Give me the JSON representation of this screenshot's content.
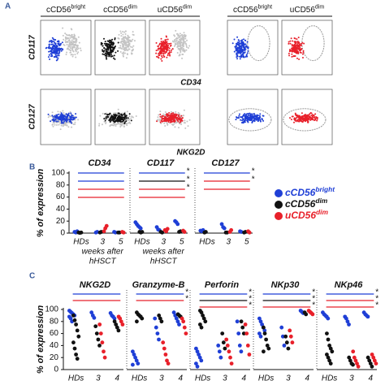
{
  "panel_a": {
    "label": "A",
    "headers": [
      [
        "cCD56",
        "bright"
      ],
      [
        "cCD56",
        "dim"
      ],
      [
        "uCD56",
        "dim"
      ],
      [
        "cCD56",
        "bright"
      ],
      [
        "uCD56",
        "dim"
      ]
    ],
    "row_labels": [
      "CD117",
      "CD127"
    ],
    "x_labels": [
      "CD34",
      "NKG2D"
    ]
  },
  "chart_data": [
    {
      "type": "strip",
      "panel": "B",
      "ylabel": "% of expression",
      "ylim": [
        0,
        100
      ],
      "yticks": [
        0,
        20,
        40,
        60,
        80,
        100
      ],
      "categories": [
        "HDs",
        "3",
        "5"
      ],
      "series": [
        {
          "name": [
            "cCD56",
            "bright"
          ],
          "color": "#1f3fd6"
        },
        {
          "name": [
            "cCD56",
            "dim"
          ],
          "color": "#111111"
        },
        {
          "name": [
            "uCD56",
            "dim"
          ],
          "color": "#e8202a"
        }
      ],
      "subplots": [
        {
          "title": "CD34",
          "xlabel": [
            "weeks after",
            "hHSCT"
          ],
          "brackets": [
            {
              "color": "#1f3fd6"
            },
            {
              "color": "#1f3fd6"
            },
            {
              "color": "#e8202a"
            },
            {
              "color": "#e8202a"
            }
          ],
          "values": [
            [
              [
                2,
                1,
                3
              ],
              [
                1,
                2
              ],
              [
                2,
                1
              ]
            ],
            [
              [
                1,
                0.5,
                1
              ],
              [
                1,
                2
              ],
              [
                1,
                1
              ]
            ],
            [
              [],
              [
                3,
                8,
                12
              ],
              [
                2,
                1
              ]
            ]
          ]
        },
        {
          "title": "CD117",
          "xlabel": [
            "weeks after",
            "hHSCT"
          ],
          "brackets": [
            {
              "color": "#1f3fd6",
              "label": "*"
            },
            {
              "color": "#111111",
              "label": "*"
            },
            {
              "color": "#e8202a",
              "label": "*"
            },
            {
              "color": "#e8202a"
            }
          ],
          "values": [
            [
              [
                18,
                15,
                12,
                10,
                8
              ],
              [
                10,
                6,
                5
              ],
              [
                20,
                18,
                15
              ]
            ],
            [
              [
                2,
                1,
                2
              ],
              [
                2,
                1
              ],
              [
                2,
                3
              ]
            ],
            [
              [],
              [
                5,
                3,
                7
              ],
              [
                4,
                2
              ]
            ]
          ]
        },
        {
          "title": "CD127",
          "brackets": [
            {
              "color": "#1f3fd6",
              "label": "*"
            },
            {
              "color": "#e8202a",
              "label": "*"
            },
            {
              "color": "#e8202a"
            }
          ],
          "values": [
            [
              [
                4,
                3,
                5,
                2
              ],
              [
                15,
                10,
                8
              ],
              [
                3,
                2
              ]
            ],
            [
              [
                1,
                2
              ],
              [
                1,
                1
              ],
              [
                1,
                2
              ]
            ],
            [
              [],
              [
                2,
                5
              ],
              [
                3,
                1
              ]
            ]
          ]
        }
      ]
    },
    {
      "type": "strip",
      "panel": "C",
      "ylabel": "% of expression",
      "ylim": [
        0,
        100
      ],
      "yticks": [
        0,
        20,
        40,
        60,
        80,
        100
      ],
      "categories": [
        "HDs",
        "3",
        "4"
      ],
      "series": [
        {
          "color": "#1f3fd6"
        },
        {
          "color": "#111111"
        },
        {
          "color": "#e8202a"
        }
      ],
      "subplots": [
        {
          "title": "NKG2D",
          "brackets": [
            {
              "color": "#1f3fd6"
            },
            {
              "color": "#e8202a"
            }
          ],
          "values": [
            [
              [
                98,
                96,
                94,
                92,
                90,
                88,
                85,
                80
              ],
              [
                95,
                90,
                86
              ],
              [
                94,
                90,
                88,
                85
              ]
            ],
            [
              [
                90,
                82,
                75,
                65,
                55,
                45,
                35,
                25,
                18
              ],
              [
                72,
                60,
                50,
                40
              ],
              [
                80,
                75,
                70,
                65
              ]
            ],
            [
              [],
              [
                75,
                60,
                45,
                30,
                20
              ],
              [
                88,
                85,
                80,
                75
              ]
            ]
          ]
        },
        {
          "title": "Granzyme-B",
          "brackets": [
            {
              "color": "#1f3fd6",
              "label": "*"
            },
            {
              "color": "#e8202a",
              "label": "*"
            }
          ],
          "values": [
            [
              [
                30,
                25,
                20,
                15,
                10,
                8
              ],
              [
                85,
                70,
                60,
                50
              ],
              [
                95,
                90,
                85,
                80,
                75
              ]
            ],
            [
              [
                95,
                92,
                90,
                88,
                85,
                80
              ],
              [
                90,
                85,
                80
              ],
              [
                92,
                90,
                88
              ]
            ],
            [
              [],
              [
                45,
                35,
                25,
                15,
                10
              ],
              [
                85,
                80,
                70,
                60
              ]
            ]
          ]
        },
        {
          "title": "Perforin",
          "brackets": [
            {
              "color": "#1f3fd6",
              "label": "*"
            },
            {
              "color": "#111111",
              "label": "*"
            },
            {
              "color": "#e8202a",
              "label": "*"
            }
          ],
          "values": [
            [
              [
                35,
                30,
                25,
                20,
                15,
                10,
                5
              ],
              [
                40,
                30,
                20
              ],
              [
                80,
                60,
                40,
                30
              ]
            ],
            [
              [
                98,
                95,
                90,
                85,
                80,
                75,
                70
              ],
              [
                60,
                45,
                35
              ],
              [
                80,
                70,
                60
              ]
            ],
            [
              [],
              [
                50,
                40,
                30,
                20,
                10
              ],
              [
                75,
                60,
                40,
                25
              ]
            ]
          ]
        },
        {
          "title": "NKp30",
          "brackets": [
            {
              "color": "#1f3fd6",
              "label": "*"
            },
            {
              "color": "#111111",
              "label": "*"
            },
            {
              "color": "#e8202a",
              "label": "*"
            }
          ],
          "values": [
            [
              [
                85,
                80,
                75,
                70,
                65,
                60,
                55
              ],
              [
                70,
                55,
                40
              ],
              [
                98,
                96,
                94
              ]
            ],
            [
              [
                70,
                60,
                50,
                40,
                35,
                30
              ],
              [
                55,
                45,
                35
              ],
              [
                95,
                92
              ]
            ],
            [
              [],
              [
                65,
                55,
                45
              ],
              [
                98,
                96,
                94,
                92
              ]
            ]
          ]
        },
        {
          "title": "NKp46",
          "brackets": [
            {
              "color": "#1f3fd6",
              "label": "*"
            },
            {
              "color": "#e8202a",
              "label": "*"
            },
            {
              "color": "#e8202a",
              "label": "*"
            }
          ],
          "values": [
            [
              [
                95,
                92,
                90,
                88,
                85
              ],
              [
                88,
                85,
                80,
                75
              ],
              [
                95,
                92,
                90,
                88
              ]
            ],
            [
              [
                60,
                50,
                40,
                35,
                30,
                25,
                20,
                15,
                10
              ],
              [
                20,
                15,
                10,
                8
              ],
              [
                20,
                15,
                10,
                5
              ]
            ],
            [
              [],
              [
                30,
                20,
                15,
                10,
                5
              ],
              [
                25,
                20,
                15,
                10
              ]
            ]
          ]
        }
      ]
    }
  ]
}
